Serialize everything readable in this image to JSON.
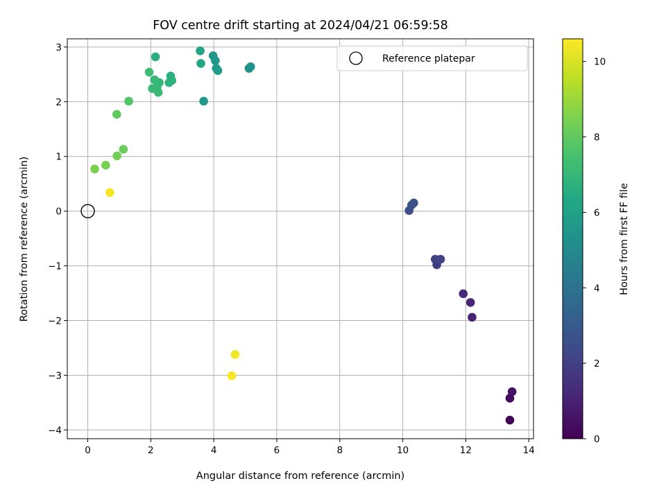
{
  "chart_data": {
    "type": "scatter",
    "title": "FOV centre drift starting at 2024/04/21 06:59:58",
    "xlabel": "Angular distance from reference (arcmin)",
    "ylabel": "Rotation from reference (arcmin)",
    "xlim": [
      -0.65,
      14.15
    ],
    "ylim": [
      -4.16,
      3.15
    ],
    "xticks": [
      0,
      2,
      4,
      6,
      8,
      10,
      12,
      14
    ],
    "yticks": [
      -4,
      -3,
      -2,
      -1,
      0,
      1,
      2,
      3
    ],
    "grid": true,
    "legend": {
      "label": "Reference platepar",
      "position": "top-right"
    },
    "reference_point": {
      "x": 0,
      "y": 0
    },
    "colorbar": {
      "label": "Hours from first FF file",
      "min": 0,
      "max": 10.6,
      "ticks": [
        0,
        2,
        4,
        6,
        8,
        10
      ],
      "colormap": "viridis"
    },
    "points": [
      {
        "x": 13.4,
        "y": -3.82,
        "c": 0.1
      },
      {
        "x": 13.4,
        "y": -3.42,
        "c": 0.3
      },
      {
        "x": 13.47,
        "y": -3.3,
        "c": 0.5
      },
      {
        "x": 12.2,
        "y": -1.94,
        "c": 1.0
      },
      {
        "x": 12.15,
        "y": -1.67,
        "c": 1.1
      },
      {
        "x": 11.92,
        "y": -1.51,
        "c": 1.3
      },
      {
        "x": 11.08,
        "y": -0.98,
        "c": 1.9
      },
      {
        "x": 11.03,
        "y": -0.88,
        "c": 2.0
      },
      {
        "x": 11.2,
        "y": -0.88,
        "c": 2.1
      },
      {
        "x": 10.2,
        "y": 0.01,
        "c": 2.5
      },
      {
        "x": 10.28,
        "y": 0.11,
        "c": 2.6
      },
      {
        "x": 10.35,
        "y": 0.15,
        "c": 2.7
      },
      {
        "x": 5.12,
        "y": 2.61,
        "c": 5.3
      },
      {
        "x": 5.17,
        "y": 2.64,
        "c": 5.4
      },
      {
        "x": 3.98,
        "y": 2.84,
        "c": 5.5
      },
      {
        "x": 4.05,
        "y": 2.75,
        "c": 5.6
      },
      {
        "x": 4.08,
        "y": 2.61,
        "c": 5.7
      },
      {
        "x": 4.13,
        "y": 2.57,
        "c": 5.8
      },
      {
        "x": 3.68,
        "y": 2.01,
        "c": 5.6
      },
      {
        "x": 3.57,
        "y": 2.93,
        "c": 6.2
      },
      {
        "x": 3.59,
        "y": 2.7,
        "c": 6.3
      },
      {
        "x": 2.15,
        "y": 2.82,
        "c": 6.6
      },
      {
        "x": 2.63,
        "y": 2.47,
        "c": 6.7
      },
      {
        "x": 2.67,
        "y": 2.39,
        "c": 6.8
      },
      {
        "x": 2.58,
        "y": 2.35,
        "c": 6.8
      },
      {
        "x": 2.27,
        "y": 2.35,
        "c": 6.9
      },
      {
        "x": 2.12,
        "y": 2.4,
        "c": 7.0
      },
      {
        "x": 2.2,
        "y": 2.27,
        "c": 7.0
      },
      {
        "x": 2.05,
        "y": 2.24,
        "c": 7.1
      },
      {
        "x": 2.24,
        "y": 2.17,
        "c": 7.1
      },
      {
        "x": 1.95,
        "y": 2.54,
        "c": 7.3
      },
      {
        "x": 1.3,
        "y": 2.01,
        "c": 7.7
      },
      {
        "x": 0.92,
        "y": 1.77,
        "c": 8.0
      },
      {
        "x": 1.13,
        "y": 1.13,
        "c": 8.2
      },
      {
        "x": 0.93,
        "y": 1.01,
        "c": 8.3
      },
      {
        "x": 0.57,
        "y": 0.84,
        "c": 8.4
      },
      {
        "x": 0.22,
        "y": 0.77,
        "c": 8.5
      },
      {
        "x": 0.7,
        "y": 0.34,
        "c": 10.5
      },
      {
        "x": 4.68,
        "y": -2.62,
        "c": 10.4
      },
      {
        "x": 4.57,
        "y": -3.01,
        "c": 10.5
      }
    ]
  }
}
